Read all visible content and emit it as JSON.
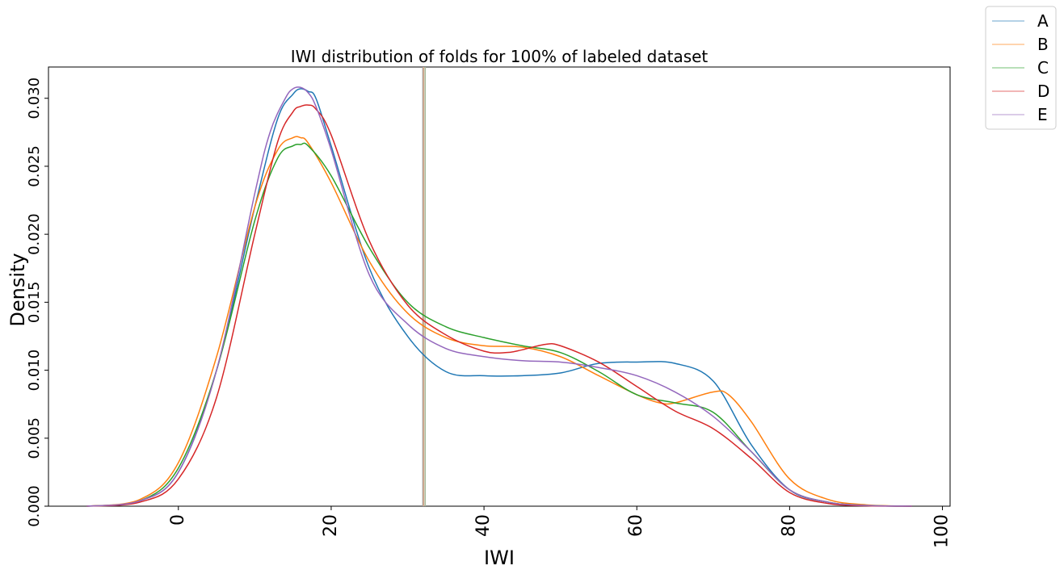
{
  "chart_data": {
    "type": "line",
    "title": "IWI distribution of folds for 100% of labeled dataset",
    "xlabel": "IWI",
    "ylabel": "Density",
    "xlim": [
      -17,
      101
    ],
    "ylim": [
      0,
      0.0323
    ],
    "xticks": [
      0,
      20,
      40,
      60,
      80,
      100
    ],
    "xtick_labels": [
      "0",
      "20",
      "40",
      "60",
      "80",
      "100"
    ],
    "yticks": [
      0.0,
      0.005,
      0.01,
      0.015,
      0.02,
      0.025,
      0.03
    ],
    "ytick_labels": [
      "0.000",
      "0.005",
      "0.010",
      "0.015",
      "0.020",
      "0.025",
      "0.030"
    ],
    "grid": false,
    "legend_position": "outside-top-right",
    "vertical_lines": [
      {
        "x": 32.0,
        "color": "#9c9c9c"
      },
      {
        "x": 32.1,
        "color": "#d9a98a"
      },
      {
        "x": 32.3,
        "color": "#a5b89a"
      }
    ],
    "series": [
      {
        "name": "A",
        "color": "#1f77b4",
        "x": [
          -12,
          -5,
          0,
          5,
          10,
          13,
          15,
          16,
          17,
          18,
          20,
          25,
          30,
          35,
          40,
          45,
          50,
          55,
          60,
          65,
          70,
          75,
          80,
          85,
          90,
          96
        ],
        "y": [
          0,
          0.0004,
          0.0025,
          0.01,
          0.022,
          0.0285,
          0.0303,
          0.0307,
          0.0305,
          0.03,
          0.0265,
          0.0175,
          0.0125,
          0.0099,
          0.0096,
          0.0096,
          0.0098,
          0.0105,
          0.0106,
          0.0105,
          0.0092,
          0.0045,
          0.0012,
          0.0003,
          5e-05,
          0
        ]
      },
      {
        "name": "B",
        "color": "#ff7f0e",
        "x": [
          -12,
          -5,
          0,
          5,
          10,
          13,
          15,
          16,
          17,
          20,
          25,
          30,
          35,
          40,
          45,
          50,
          55,
          60,
          63,
          65,
          70,
          72,
          75,
          80,
          85,
          90,
          96
        ],
        "y": [
          0,
          0.0005,
          0.0032,
          0.011,
          0.022,
          0.0262,
          0.0271,
          0.0271,
          0.0267,
          0.0238,
          0.018,
          0.0142,
          0.0124,
          0.0118,
          0.0117,
          0.011,
          0.0096,
          0.0082,
          0.0076,
          0.0076,
          0.0084,
          0.0082,
          0.0062,
          0.002,
          0.0005,
          0.0001,
          0
        ]
      },
      {
        "name": "C",
        "color": "#2ca02c",
        "x": [
          -12,
          -5,
          0,
          5,
          10,
          13,
          15,
          16,
          17,
          20,
          25,
          30,
          35,
          40,
          45,
          50,
          55,
          60,
          65,
          70,
          75,
          80,
          85,
          90,
          96
        ],
        "y": [
          0,
          0.0004,
          0.0028,
          0.01,
          0.021,
          0.0256,
          0.0265,
          0.0266,
          0.0265,
          0.0243,
          0.019,
          0.015,
          0.0132,
          0.0124,
          0.0118,
          0.0113,
          0.0099,
          0.0082,
          0.0076,
          0.0069,
          0.004,
          0.0012,
          0.0003,
          5e-05,
          0
        ]
      },
      {
        "name": "D",
        "color": "#d62728",
        "x": [
          -12,
          -5,
          0,
          5,
          10,
          13,
          15,
          16,
          17,
          18,
          20,
          25,
          30,
          35,
          40,
          43,
          45,
          48,
          50,
          55,
          60,
          65,
          70,
          75,
          80,
          85,
          90,
          96
        ],
        "y": [
          0,
          0.0003,
          0.002,
          0.008,
          0.02,
          0.0268,
          0.029,
          0.0294,
          0.0295,
          0.0292,
          0.0273,
          0.0195,
          0.0148,
          0.0126,
          0.0114,
          0.0113,
          0.0115,
          0.0119,
          0.0118,
          0.0106,
          0.0088,
          0.007,
          0.0057,
          0.0035,
          0.001,
          0.0002,
          3e-05,
          0
        ]
      },
      {
        "name": "E",
        "color": "#9467bd",
        "x": [
          -12,
          -5,
          0,
          5,
          10,
          12,
          14,
          15,
          16,
          17,
          18,
          20,
          25,
          30,
          35,
          40,
          45,
          50,
          55,
          60,
          65,
          70,
          75,
          80,
          85,
          90,
          96
        ],
        "y": [
          0,
          0.0004,
          0.0025,
          0.01,
          0.023,
          0.0275,
          0.03,
          0.0307,
          0.0308,
          0.0304,
          0.0294,
          0.0262,
          0.017,
          0.0134,
          0.0116,
          0.011,
          0.0107,
          0.0106,
          0.0102,
          0.0096,
          0.0084,
          0.0066,
          0.004,
          0.0012,
          0.0003,
          5e-05,
          0
        ]
      }
    ]
  }
}
